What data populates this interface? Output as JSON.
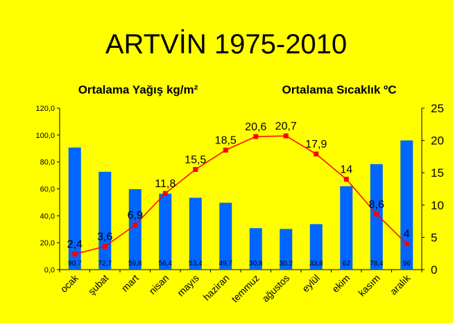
{
  "chart_data": {
    "type": "bar+line",
    "title": "ARTVİN 1975-2010",
    "categories": [
      "ocak",
      "şubat",
      "mart",
      "nisan",
      "mayıs",
      "haziran",
      "temmuz",
      "ağustos",
      "eylül",
      "ekim",
      "kasım",
      "aralık"
    ],
    "series": [
      {
        "name": "Ortalama Yağış kg/m²",
        "type": "bar",
        "axis": "left",
        "color": "#0066FF",
        "values": [
          90.7,
          72.7,
          59.8,
          56.4,
          53.4,
          49.7,
          30.8,
          30.2,
          33.8,
          62,
          78.4,
          96
        ],
        "labels": [
          "90,7",
          "72,7",
          "59,8",
          "56,4",
          "53,4",
          "49,7",
          "30,8",
          "30,2",
          "33,8",
          "62",
          "78,4",
          "96"
        ]
      },
      {
        "name": "Ortalama Sıcaklık ºC",
        "type": "line",
        "axis": "right",
        "color": "#FF0000",
        "values": [
          2.4,
          3.6,
          6.9,
          11.8,
          15.5,
          18.5,
          20.6,
          20.7,
          17.9,
          14,
          8.6,
          4
        ],
        "labels": [
          "2,4",
          "3,6",
          "6,9",
          "11,8",
          "15,5",
          "18,5",
          "20,6",
          "20,7",
          "17,9",
          "14",
          "8,6",
          "4"
        ]
      }
    ],
    "y_left": {
      "min": 0,
      "max": 120,
      "ticks": [
        "0,0",
        "20,0",
        "40,0",
        "60,0",
        "80,0",
        "100,0",
        "120,0"
      ]
    },
    "y_right": {
      "min": 0,
      "max": 25,
      "ticks": [
        "0",
        "5",
        "10",
        "15",
        "20",
        "25"
      ]
    },
    "grid": false,
    "background": "#FFFF00"
  }
}
